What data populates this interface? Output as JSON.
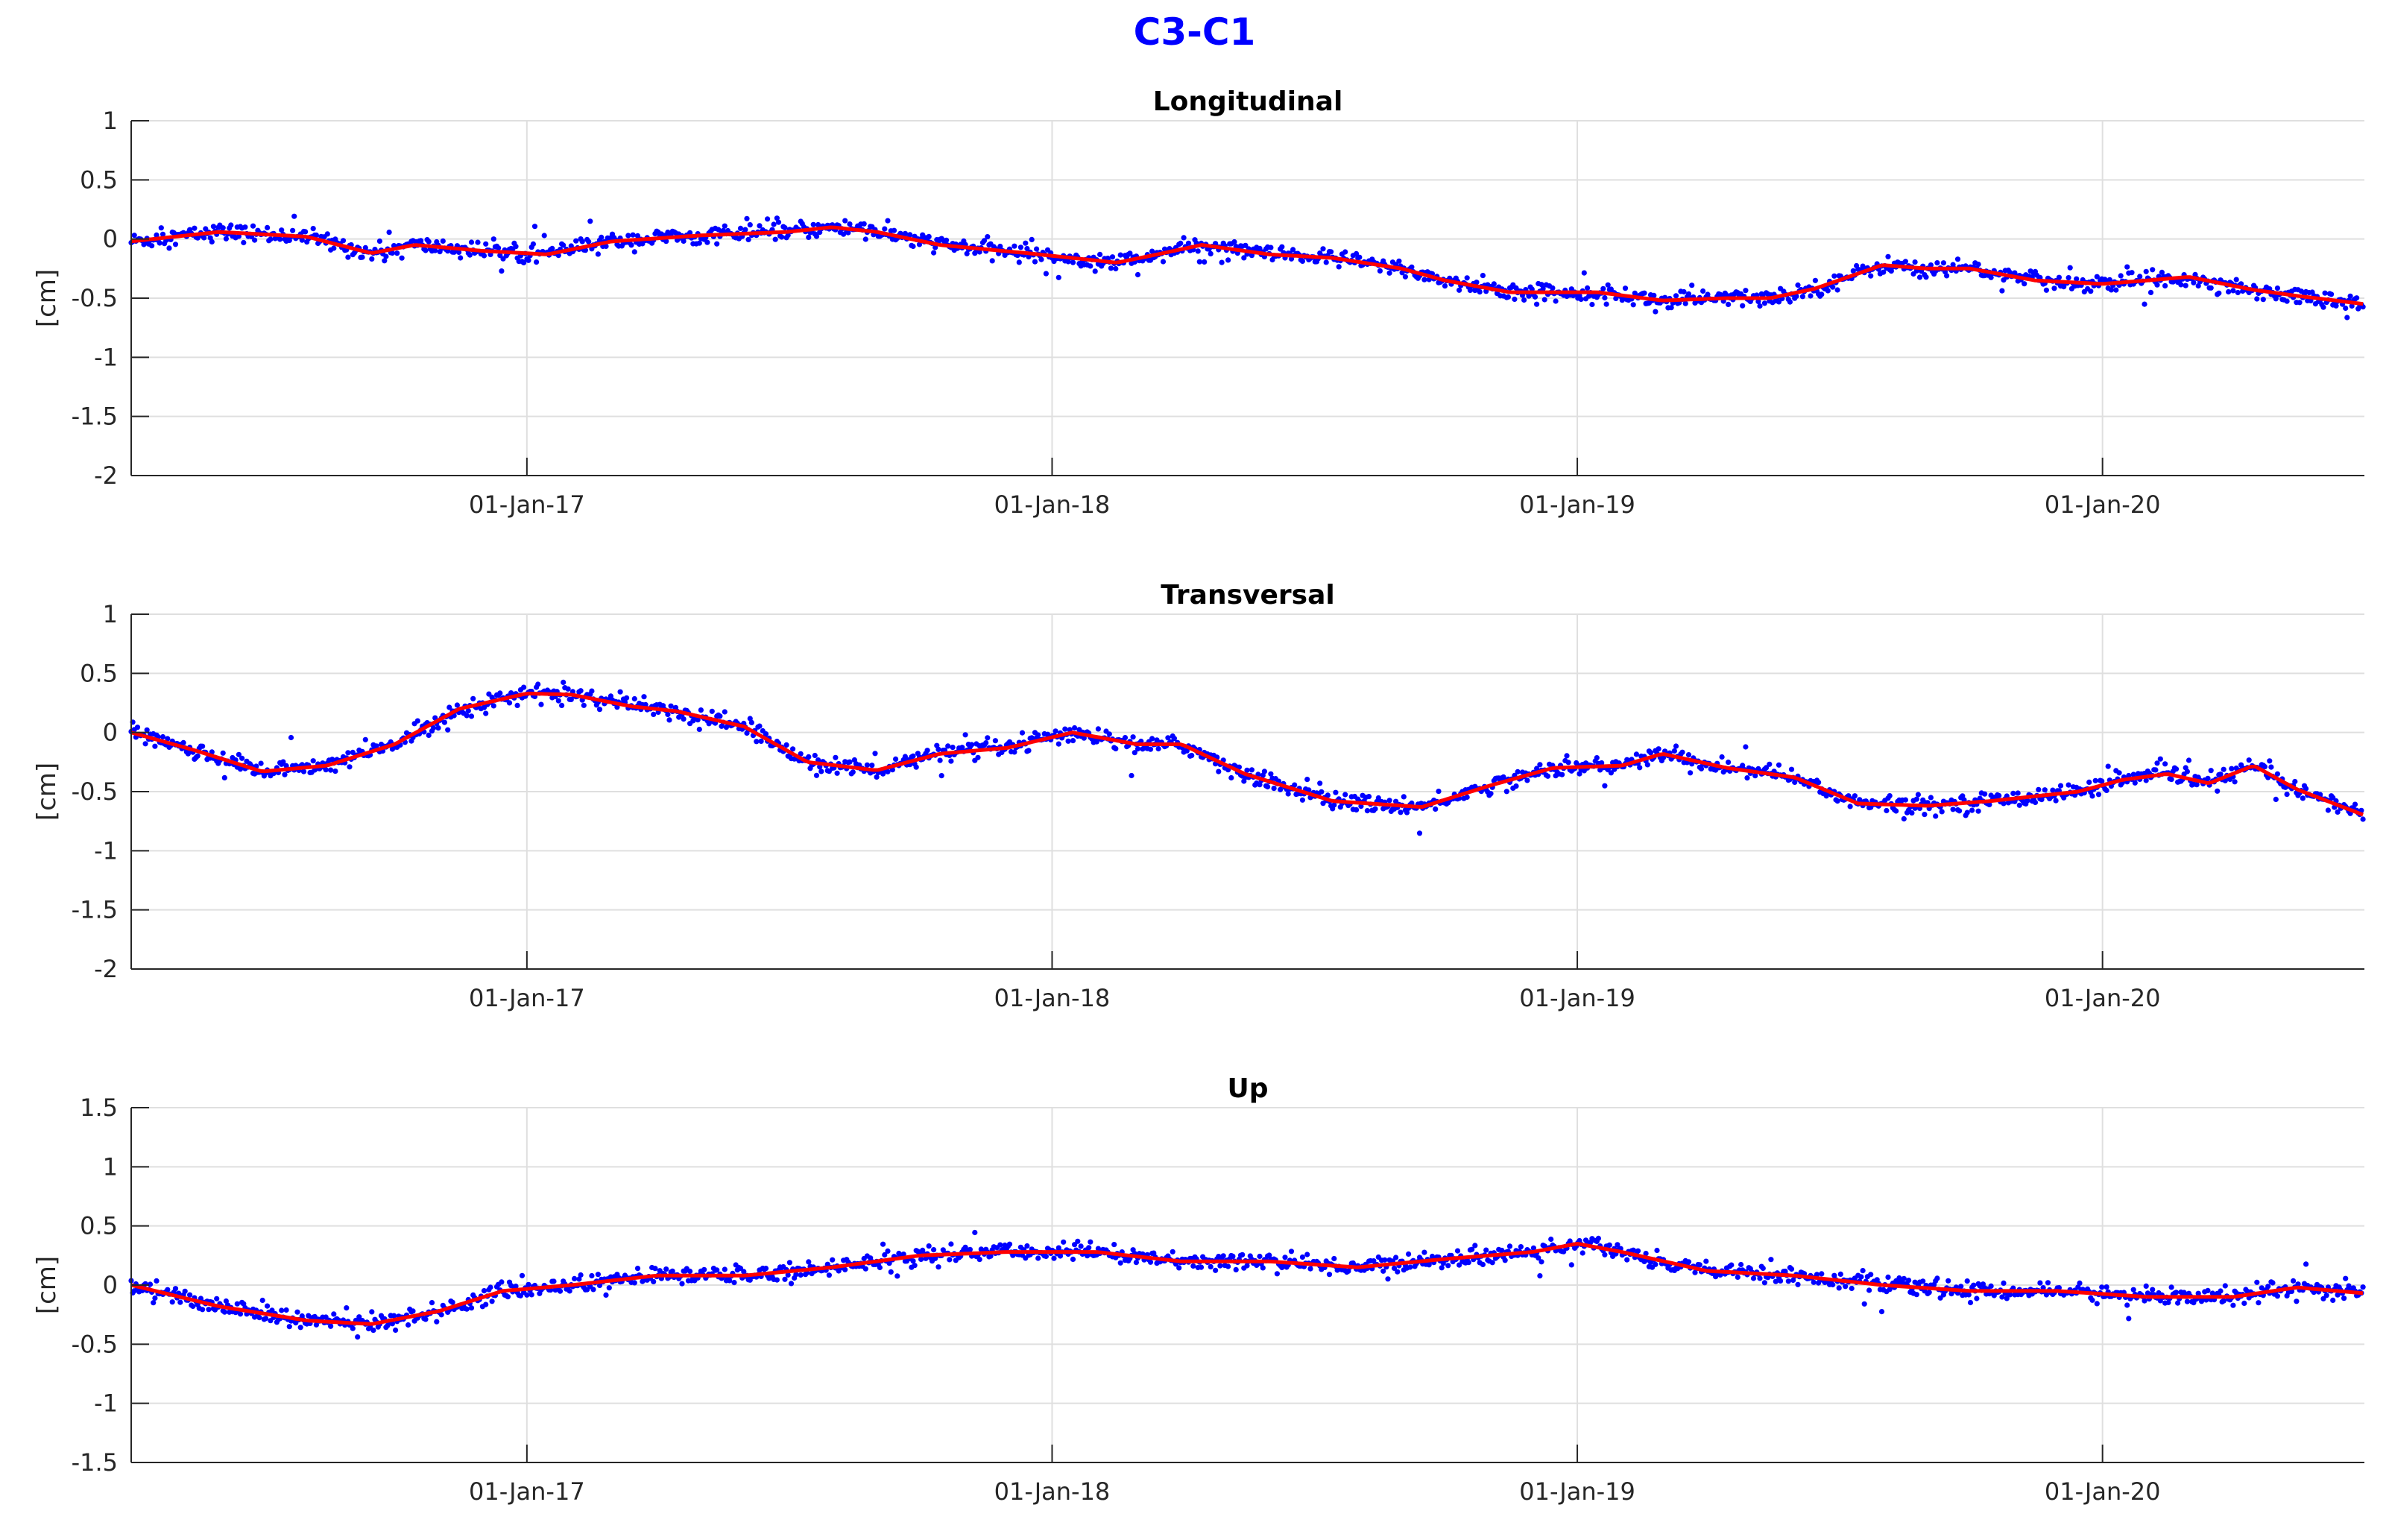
{
  "figure": {
    "title": "C3-C1",
    "title_color": "#0000ff"
  },
  "chart_data": [
    {
      "type": "scatter",
      "title": "Longitudinal",
      "xlabel": "",
      "ylabel": "[cm]",
      "xlim": [
        "2016-04-01",
        "2020-07-01"
      ],
      "ylim": [
        -2,
        1
      ],
      "yticks": [
        1,
        0.5,
        0,
        -0.5,
        -1,
        -1.5,
        -2
      ],
      "ytick_labels": [
        "1",
        "0.5",
        "0",
        "-0.5",
        "-1",
        "-1.5",
        "-2"
      ],
      "xticks": [
        "2017-01-01",
        "2018-01-01",
        "2019-01-01",
        "2020-01-01"
      ],
      "xtick_labels": [
        "01-Jan-17",
        "01-Jan-18",
        "01-Jan-19",
        "01-Jan-20"
      ],
      "grid": true,
      "point_color": "#0000ff",
      "line_color": "#ff0000",
      "trend": {
        "x": [
          "2016-04-01",
          "2016-06-01",
          "2016-08-01",
          "2016-09-15",
          "2016-10-15",
          "2016-12-01",
          "2017-01-15",
          "2017-03-01",
          "2017-05-01",
          "2017-07-01",
          "2017-08-01",
          "2017-09-01",
          "2017-10-15",
          "2017-12-15",
          "2018-02-15",
          "2018-03-15",
          "2018-04-15",
          "2018-06-01",
          "2018-07-15",
          "2018-09-01",
          "2018-10-01",
          "2018-11-15",
          "2019-01-15",
          "2019-03-01",
          "2019-04-15",
          "2019-05-15",
          "2019-06-15",
          "2019-08-01",
          "2019-09-01",
          "2019-10-01",
          "2019-11-15",
          "2020-01-01",
          "2020-02-01",
          "2020-03-01",
          "2020-04-15",
          "2020-05-15",
          "2020-07-01"
        ],
        "y": [
          -0.02,
          0.06,
          0.02,
          -0.12,
          -0.05,
          -0.1,
          -0.13,
          -0.02,
          0.03,
          0.06,
          0.1,
          0.06,
          -0.05,
          -0.12,
          -0.2,
          -0.13,
          -0.05,
          -0.13,
          -0.16,
          -0.25,
          -0.35,
          -0.45,
          -0.45,
          -0.52,
          -0.5,
          -0.5,
          -0.42,
          -0.22,
          -0.25,
          -0.25,
          -0.35,
          -0.38,
          -0.35,
          -0.32,
          -0.43,
          -0.48,
          -0.55
        ]
      }
    },
    {
      "type": "scatter",
      "title": "Transversal",
      "xlabel": "",
      "ylabel": "[cm]",
      "xlim": [
        "2016-04-01",
        "2020-07-01"
      ],
      "ylim": [
        -2,
        1
      ],
      "yticks": [
        1,
        0.5,
        0,
        -0.5,
        -1,
        -1.5,
        -2
      ],
      "ytick_labels": [
        "1",
        "0.5",
        "0",
        "-0.5",
        "-1",
        "-1.5",
        "-2"
      ],
      "xticks": [
        "2017-01-01",
        "2018-01-01",
        "2019-01-01",
        "2020-01-01"
      ],
      "xtick_labels": [
        "01-Jan-17",
        "01-Jan-18",
        "01-Jan-19",
        "01-Jan-20"
      ],
      "grid": true,
      "point_color": "#0000ff",
      "line_color": "#ff0000",
      "trend": {
        "x": [
          "2016-04-01",
          "2016-05-15",
          "2016-07-01",
          "2016-08-15",
          "2016-10-01",
          "2016-11-15",
          "2017-01-01",
          "2017-02-01",
          "2017-03-15",
          "2017-04-15",
          "2017-06-01",
          "2017-07-15",
          "2017-09-01",
          "2017-10-15",
          "2017-12-01",
          "2018-01-15",
          "2018-03-01",
          "2018-04-01",
          "2018-05-15",
          "2018-07-15",
          "2018-09-15",
          "2018-11-01",
          "2018-12-15",
          "2019-02-01",
          "2019-03-01",
          "2019-04-15",
          "2019-06-01",
          "2019-07-15",
          "2019-09-01",
          "2019-10-15",
          "2019-12-15",
          "2020-01-15",
          "2020-02-15",
          "2020-03-15",
          "2020-04-15",
          "2020-05-15",
          "2020-07-01"
        ],
        "y": [
          0.0,
          -0.15,
          -0.33,
          -0.28,
          -0.1,
          0.2,
          0.33,
          0.32,
          0.22,
          0.18,
          0.05,
          -0.25,
          -0.32,
          -0.18,
          -0.13,
          0.0,
          -0.1,
          -0.1,
          -0.35,
          -0.58,
          -0.63,
          -0.45,
          -0.3,
          -0.28,
          -0.18,
          -0.3,
          -0.38,
          -0.6,
          -0.62,
          -0.58,
          -0.5,
          -0.4,
          -0.35,
          -0.43,
          -0.28,
          -0.48,
          -0.7
        ]
      }
    },
    {
      "type": "scatter",
      "title": "Up",
      "xlabel": "",
      "ylabel": "[cm]",
      "xlim": [
        "2016-04-01",
        "2020-07-01"
      ],
      "ylim": [
        -1.5,
        1.5
      ],
      "yticks": [
        1.5,
        1,
        0.5,
        0,
        -0.5,
        -1,
        -1.5
      ],
      "ytick_labels": [
        "1.5",
        "1",
        "0.5",
        "0",
        "-0.5",
        "-1",
        "-1.5"
      ],
      "xticks": [
        "2017-01-01",
        "2018-01-01",
        "2019-01-01",
        "2020-01-01"
      ],
      "xtick_labels": [
        "01-Jan-17",
        "01-Jan-18",
        "01-Jan-19",
        "01-Jan-20"
      ],
      "grid": true,
      "point_color": "#0000ff",
      "line_color": "#ff0000",
      "trend": {
        "x": [
          "2016-04-01",
          "2016-06-01",
          "2016-08-01",
          "2016-09-15",
          "2016-11-01",
          "2016-12-15",
          "2017-02-01",
          "2017-04-01",
          "2017-06-01",
          "2017-08-01",
          "2017-10-01",
          "2017-12-01",
          "2018-02-01",
          "2018-04-01",
          "2018-06-01",
          "2018-08-01",
          "2018-10-01",
          "2018-12-01",
          "2019-01-01",
          "2019-02-01",
          "2019-04-01",
          "2019-06-01",
          "2019-08-01",
          "2019-10-01",
          "2019-12-01",
          "2020-02-01",
          "2020-04-01",
          "2020-05-15",
          "2020-07-01"
        ],
        "y": [
          0.0,
          -0.18,
          -0.3,
          -0.33,
          -0.22,
          -0.05,
          0.0,
          0.08,
          0.08,
          0.15,
          0.25,
          0.28,
          0.28,
          0.2,
          0.2,
          0.15,
          0.22,
          0.28,
          0.35,
          0.28,
          0.12,
          0.08,
          0.0,
          -0.05,
          -0.05,
          -0.1,
          -0.1,
          -0.02,
          -0.07
        ]
      }
    }
  ]
}
